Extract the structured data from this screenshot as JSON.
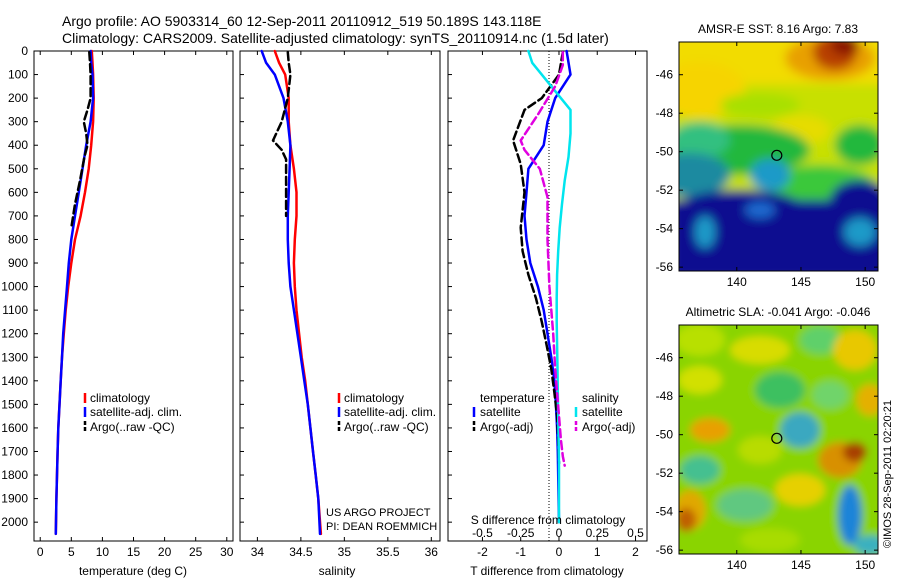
{
  "header": {
    "line1": "Argo profile: AO 5903314_60 12-Sep-2011 20110912_519 50.189S 143.118E",
    "line2": "Climatology: CARS2009. Satellite-adjusted climatology: synTS_20110914.nc (1.5d later)"
  },
  "credit": {
    "project": "US ARGO PROJECT",
    "pi": "PI: DEAN ROEMMICH",
    "stamp": "©IMOS 28-Sep-2011 02:20:21"
  },
  "colors": {
    "climatology": "#ff0000",
    "satellite": "#0000ff",
    "argo": "#000000",
    "salinity_satellite": "#00e5ee",
    "salinity_argo": "#e000e0"
  },
  "chart_data": [
    {
      "type": "line",
      "title": "",
      "xlabel": "temperature (deg C)",
      "ylabel": "",
      "xlim": [
        -1,
        31
      ],
      "ylim": [
        2080,
        0
      ],
      "xticks": [
        0,
        5,
        10,
        15,
        20,
        25,
        30
      ],
      "yticks": [
        0,
        100,
        200,
        300,
        400,
        500,
        600,
        700,
        800,
        900,
        1000,
        1100,
        1200,
        1300,
        1400,
        1500,
        1600,
        1700,
        1800,
        1900,
        2000
      ],
      "legend": {
        "position": "lower-right",
        "entries": [
          "climatology",
          "satellite-adj. clim.",
          "Argo(..raw -QC)"
        ]
      },
      "series": [
        {
          "name": "climatology",
          "color": "#ff0000",
          "style": "solid",
          "x": [
            8.3,
            8.4,
            8.5,
            8.6,
            8.5,
            8.2,
            7.8,
            7.2,
            6.5,
            5.6,
            5.0,
            4.5,
            4.1,
            3.8,
            3.5,
            3.3,
            3.1,
            2.9,
            2.8,
            2.7,
            2.6,
            2.5
          ],
          "y": [
            0,
            50,
            100,
            200,
            300,
            400,
            500,
            600,
            700,
            800,
            900,
            1000,
            1100,
            1200,
            1300,
            1400,
            1500,
            1600,
            1700,
            1800,
            1900,
            2050
          ]
        },
        {
          "name": "satellite-adj. clim.",
          "color": "#0000ff",
          "style": "solid",
          "x": [
            8.1,
            8.2,
            8.4,
            8.5,
            8.1,
            7.4,
            6.8,
            6.2,
            5.6,
            5.0,
            4.6,
            4.3,
            4.0,
            3.7,
            3.5,
            3.3,
            3.1,
            2.9,
            2.8,
            2.7,
            2.6,
            2.5
          ],
          "y": [
            0,
            50,
            100,
            200,
            300,
            400,
            500,
            600,
            700,
            800,
            900,
            1000,
            1100,
            1200,
            1300,
            1400,
            1500,
            1600,
            1700,
            1800,
            1900,
            2050
          ]
        },
        {
          "name": "Argo(..raw -QC)",
          "color": "#000000",
          "style": "dashed",
          "x": [
            7.9,
            8.0,
            8.1,
            8.1,
            7.6,
            7.0,
            7.4,
            7.6,
            7.1,
            6.4,
            5.6,
            5.0
          ],
          "y": [
            5,
            50,
            100,
            200,
            250,
            300,
            350,
            400,
            450,
            550,
            650,
            750
          ]
        }
      ]
    },
    {
      "type": "line",
      "title": "",
      "xlabel": "salinity",
      "ylabel": "",
      "xlim": [
        33.8,
        36.1
      ],
      "ylim": [
        2080,
        0
      ],
      "xticks": [
        34,
        34.5,
        35,
        35.5,
        36
      ],
      "yticks": [],
      "legend": {
        "position": "lower-right",
        "entries": [
          "climatology",
          "satellite-adj. clim.",
          "Argo(..raw -QC)"
        ]
      },
      "series": [
        {
          "name": "climatology",
          "color": "#ff0000",
          "style": "solid",
          "x": [
            34.2,
            34.25,
            34.32,
            34.36,
            34.36,
            34.38,
            34.42,
            34.45,
            34.45,
            34.43,
            34.42,
            34.43,
            34.45,
            34.48,
            34.51,
            34.55,
            34.58,
            34.61,
            34.64,
            34.67,
            34.7,
            34.73
          ],
          "y": [
            0,
            50,
            100,
            200,
            300,
            400,
            500,
            600,
            700,
            800,
            900,
            1000,
            1100,
            1200,
            1300,
            1400,
            1500,
            1600,
            1700,
            1800,
            1900,
            2050
          ]
        },
        {
          "name": "satellite-adj. clim.",
          "color": "#0000ff",
          "style": "solid",
          "x": [
            34.05,
            34.1,
            34.2,
            34.3,
            34.35,
            34.38,
            34.37,
            34.36,
            34.35,
            34.35,
            34.36,
            34.38,
            34.42,
            34.46,
            34.5,
            34.54,
            34.58,
            34.61,
            34.64,
            34.67,
            34.7,
            34.72
          ],
          "y": [
            0,
            50,
            100,
            200,
            300,
            400,
            500,
            600,
            700,
            800,
            900,
            1000,
            1100,
            1200,
            1300,
            1400,
            1500,
            1600,
            1700,
            1800,
            1900,
            2050
          ]
        },
        {
          "name": "Argo(..raw -QC)",
          "color": "#000000",
          "style": "dashed",
          "x": [
            34.35,
            34.36,
            34.38,
            34.35,
            34.28,
            34.18,
            34.28,
            34.33,
            34.33,
            34.33
          ],
          "y": [
            5,
            50,
            100,
            200,
            300,
            380,
            420,
            460,
            550,
            700
          ]
        }
      ]
    },
    {
      "type": "line",
      "title": "",
      "xlabel": "T difference from climatology",
      "ylabel": "",
      "xlim": [
        -2.9,
        2.3
      ],
      "ylim": [
        2080,
        0
      ],
      "xticks": [
        -2,
        -1,
        0,
        1,
        2
      ],
      "secondary_xlabel": "S difference from climatology",
      "secondary_xticks": [
        -0.5,
        -0.25,
        0,
        0.25,
        0.5
      ],
      "legend": {
        "position": "lower-center",
        "groups": [
          {
            "title": "temperature",
            "entries": [
              "satellite",
              "Argo(-adj)"
            ]
          },
          {
            "title": "salinity",
            "entries": [
              "satellite",
              "Argo(-adj)"
            ]
          }
        ]
      },
      "series": [
        {
          "name": "satellite",
          "group": "temperature",
          "color": "#0000ff",
          "style": "solid",
          "x": [
            0.2,
            0.3,
            -0.1,
            -0.3,
            -0.4,
            -0.8,
            -0.85,
            -0.9,
            -0.85,
            -0.75,
            -0.55,
            -0.4,
            -0.3,
            -0.2,
            -0.12,
            -0.08,
            -0.05,
            -0.03,
            -0.02,
            -0.01,
            0.0
          ],
          "y": [
            0,
            100,
            200,
            300,
            400,
            500,
            600,
            700,
            800,
            900,
            1000,
            1100,
            1200,
            1300,
            1400,
            1500,
            1600,
            1700,
            1800,
            1900,
            2000
          ]
        },
        {
          "name": "Argo(-adj)",
          "group": "temperature",
          "color": "#000000",
          "style": "dashed",
          "x": [
            0.1,
            0.0,
            -0.45,
            -0.9,
            -1.2,
            -1.0,
            -0.9,
            -1.0,
            -0.95,
            -0.8,
            -0.6,
            -0.45,
            -0.32,
            -0.2,
            -0.12,
            -0.05,
            -0.02,
            0.0
          ],
          "y": [
            5,
            100,
            200,
            250,
            380,
            480,
            600,
            750,
            850,
            950,
            1050,
            1150,
            1250,
            1350,
            1450,
            1550,
            1650,
            1750
          ]
        },
        {
          "name": "satellite",
          "group": "salinity",
          "color": "#00e5ee",
          "style": "solid",
          "x": [
            -0.8,
            -0.7,
            -0.2,
            0.3,
            0.3,
            0.25,
            0.15,
            0.08,
            0.02,
            -0.02,
            -0.05,
            -0.06,
            -0.06,
            -0.05,
            -0.04,
            -0.03,
            -0.02,
            -0.01,
            0.0,
            0.0
          ],
          "y": [
            0,
            50,
            150,
            250,
            350,
            450,
            550,
            650,
            750,
            850,
            950,
            1050,
            1150,
            1250,
            1350,
            1450,
            1550,
            1650,
            1750,
            2000
          ]
        },
        {
          "name": "Argo(-adj)",
          "group": "salinity",
          "color": "#e000e0",
          "style": "dashed",
          "x": [
            0.1,
            0.1,
            -0.1,
            -0.55,
            -1.0,
            -0.9,
            -0.5,
            -0.3,
            -0.3,
            -0.25,
            -0.15,
            -0.1,
            -0.05,
            0.0,
            0.05,
            0.1,
            0.15
          ],
          "y": [
            5,
            60,
            150,
            270,
            380,
            420,
            500,
            620,
            800,
            1000,
            1200,
            1350,
            1450,
            1550,
            1650,
            1720,
            1760
          ]
        }
      ]
    },
    {
      "type": "heatmap",
      "title": "AMSR-E SST: 8.16 Argo: 7.83",
      "xlabel": "",
      "ylabel": "",
      "xlim": [
        135.5,
        151
      ],
      "ylim": [
        -56.2,
        -44.3
      ],
      "xticks": [
        140,
        145,
        150
      ],
      "yticks": [
        -46,
        -48,
        -50,
        -52,
        -54,
        -56
      ],
      "marker": {
        "lon": 143.118,
        "lat": -50.189
      }
    },
    {
      "type": "heatmap",
      "title": "Altimetric SLA: -0.041 Argo: -0.046",
      "xlabel": "",
      "ylabel": "",
      "xlim": [
        135.5,
        151
      ],
      "ylim": [
        -56.2,
        -44.3
      ],
      "xticks": [
        140,
        145,
        150
      ],
      "yticks": [
        -46,
        -48,
        -50,
        -52,
        -54,
        -56
      ],
      "marker": {
        "lon": 143.118,
        "lat": -50.189
      }
    }
  ]
}
